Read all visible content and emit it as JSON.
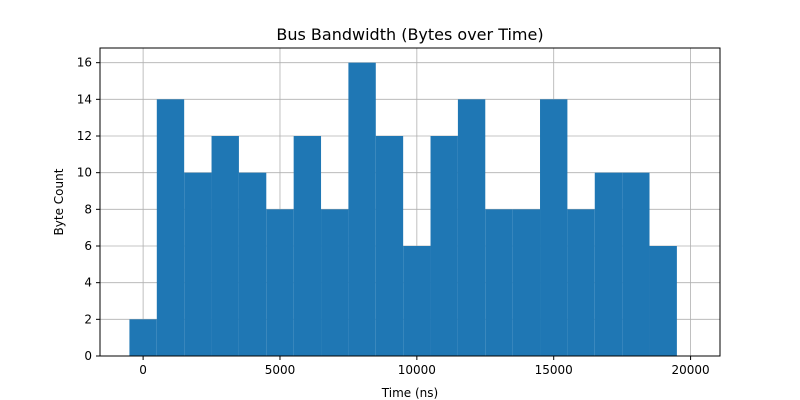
{
  "chart_data": {
    "type": "bar",
    "title": "Bus Bandwidth (Bytes over Time)",
    "xlabel": "Time (ns)",
    "ylabel": "Byte Count",
    "bar_width": 1000,
    "x": [
      0,
      1000,
      2000,
      3000,
      4000,
      5000,
      6000,
      7000,
      8000,
      9000,
      10000,
      11000,
      12000,
      13000,
      14000,
      15000,
      16000,
      17000,
      18000,
      19000
    ],
    "values": [
      2,
      14,
      10,
      12,
      10,
      8,
      12,
      8,
      16,
      12,
      6,
      12,
      14,
      8,
      8,
      14,
      8,
      10,
      10,
      6
    ],
    "xlim": [
      -1575,
      21075
    ],
    "ylim": [
      0,
      16.8
    ],
    "xticks": [
      0,
      5000,
      10000,
      15000,
      20000
    ],
    "yticks": [
      0,
      2,
      4,
      6,
      8,
      10,
      12,
      14,
      16
    ],
    "grid": true,
    "bar_color": "#1f77b4",
    "grid_color": "#b0b0b0"
  }
}
